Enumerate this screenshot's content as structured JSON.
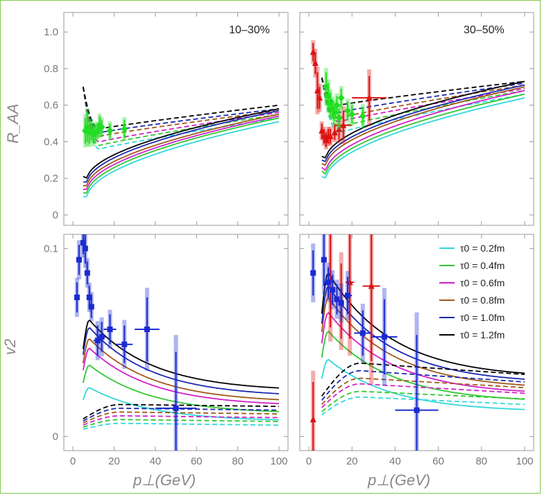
{
  "chart_data": {
    "type": "line",
    "xlabel": "p⊥(GeV)",
    "x_ticks": [
      "0",
      "20",
      "40",
      "60",
      "80",
      "100"
    ],
    "xlim": [
      0,
      100
    ],
    "top_ylabel": "R_AA",
    "top_ylim": [
      0,
      1.05
    ],
    "top_y_ticks": [
      "0",
      "0.2",
      "0.4",
      "0.6",
      "0.8",
      "1.0"
    ],
    "bottom_ylabel": "v2",
    "bottom_ylim": [
      -0.002,
      0.102
    ],
    "bottom_y_ticks": [
      "0",
      "0.1"
    ],
    "panel_labels": [
      "10–30%",
      "30–50%"
    ],
    "legend_position": "top-right of lower-right panel",
    "legend": [
      {
        "label": "τ0 = 0.2fm",
        "color": "#30d8d8"
      },
      {
        "label": "τ0 = 0.4fm",
        "color": "#30c830"
      },
      {
        "label": "τ0 = 0.6fm",
        "color": "#d020c8"
      },
      {
        "label": "τ0 = 0.8fm",
        "color": "#a0581a"
      },
      {
        "label": "τ0 = 1.0fm",
        "color": "#1a28b0"
      },
      {
        "label": "τ0 = 1.2fm",
        "color": "#000000"
      }
    ],
    "panels": [
      {
        "name": "RAA 10-30%",
        "solid_start_x": 5,
        "solid_min_x": 7,
        "solid_start": [
          0.1,
          0.12,
          0.14,
          0.16,
          0.18,
          0.21
        ],
        "solid_min": [
          0.1,
          0.12,
          0.14,
          0.16,
          0.18,
          0.2
        ],
        "solid_end": [
          0.51,
          0.53,
          0.54,
          0.55,
          0.57,
          0.58
        ],
        "dashed_start": [
          0.7,
          0.7,
          0.7,
          0.7,
          0.7,
          0.7
        ],
        "dashed_min": [
          0.36,
          0.38,
          0.4,
          0.43,
          0.45,
          0.47
        ],
        "dashed_end": [
          0.53,
          0.55,
          0.56,
          0.57,
          0.58,
          0.6
        ],
        "data": [
          {
            "color": "#22dd22",
            "marker": "diamond",
            "points": [
              [
                6,
                0.46
              ],
              [
                7,
                0.48
              ],
              [
                8,
                0.45
              ],
              [
                9,
                0.46
              ],
              [
                10,
                0.44
              ],
              [
                11,
                0.45
              ],
              [
                12,
                0.46
              ],
              [
                13,
                0.49
              ],
              [
                14,
                0.48
              ],
              [
                18,
                0.46
              ],
              [
                25,
                0.47
              ]
            ],
            "yerr": [
              0.07,
              0.08,
              0.06,
              0.05,
              0.05,
              0.04,
              0.04,
              0.05,
              0.04,
              0.04,
              0.05
            ],
            "xerr": [
              0,
              0,
              0,
              0,
              0,
              0,
              0,
              0,
              0,
              0,
              0
            ]
          }
        ]
      },
      {
        "name": "RAA 30-50%",
        "solid_start_x": 6,
        "solid_min_x": 8,
        "solid_start": [
          0.21,
          0.24,
          0.26,
          0.28,
          0.3,
          0.32
        ],
        "solid_min": [
          0.2,
          0.22,
          0.24,
          0.27,
          0.29,
          0.31
        ],
        "solid_end": [
          0.64,
          0.66,
          0.68,
          0.7,
          0.71,
          0.73
        ],
        "dashed_start": [
          0.75,
          0.75,
          0.75,
          0.75,
          0.75,
          0.75
        ],
        "dashed_min": [
          0.45,
          0.48,
          0.51,
          0.53,
          0.56,
          0.6
        ],
        "dashed_end": [
          0.66,
          0.68,
          0.69,
          0.71,
          0.72,
          0.73
        ],
        "data": [
          {
            "color": "#dd1111",
            "marker": "triangle",
            "points": [
              [
                2,
                0.89
              ],
              [
                3,
                0.83
              ],
              [
                4,
                0.68
              ],
              [
                5,
                0.64
              ],
              [
                6,
                0.46
              ],
              [
                7,
                0.43
              ],
              [
                8,
                0.41
              ],
              [
                9,
                0.43
              ],
              [
                10,
                0.43
              ],
              [
                12,
                0.45
              ],
              [
                14,
                0.47
              ],
              [
                16,
                0.49
              ],
              [
                28,
                0.64
              ]
            ],
            "yerr": [
              0.05,
              0.06,
              0.1,
              0.06,
              0.04,
              0.04,
              0.04,
              0.04,
              0.04,
              0.04,
              0.06,
              0.08,
              0.12
            ],
            "xerr": [
              0,
              0,
              0,
              0,
              0,
              0,
              0,
              0,
              0,
              0,
              0,
              4,
              8
            ]
          },
          {
            "color": "#22dd22",
            "marker": "diamond",
            "points": [
              [
                8,
                0.7
              ],
              [
                9,
                0.65
              ],
              [
                10,
                0.61
              ],
              [
                11,
                0.58
              ],
              [
                12,
                0.56
              ],
              [
                13,
                0.6
              ],
              [
                14,
                0.53
              ],
              [
                15,
                0.64
              ],
              [
                18,
                0.57
              ],
              [
                20,
                0.55
              ],
              [
                25,
                0.54
              ]
            ],
            "yerr": [
              0.08,
              0.07,
              0.06,
              0.05,
              0.05,
              0.05,
              0.05,
              0.05,
              0.05,
              0.05,
              0.05
            ],
            "xerr": [
              0,
              0,
              0,
              0,
              0,
              0,
              0,
              0,
              0,
              0,
              0
            ]
          }
        ]
      },
      {
        "name": "v2 10-30%",
        "solid_start_x": 5,
        "solid_peak_x": 8,
        "solid_peak": [
          0.026,
          0.038,
          0.047,
          0.052,
          0.058,
          0.062
        ],
        "solid_end": [
          0.008,
          0.012,
          0.016,
          0.018,
          0.021,
          0.024
        ],
        "dashed_peak": [
          0.007,
          0.009,
          0.011,
          0.013,
          0.015,
          0.017
        ],
        "dashed_end": [
          0.006,
          0.008,
          0.01,
          0.012,
          0.014,
          0.016
        ],
        "data": [
          {
            "color": "#1a2ad0",
            "marker": "square",
            "points": [
              [
                2,
                0.074
              ],
              [
                3,
                0.094
              ],
              [
                5,
                0.103
              ],
              [
                6,
                0.1
              ],
              [
                7,
                0.087
              ],
              [
                8,
                0.074
              ],
              [
                9,
                0.069
              ],
              [
                12,
                0.051
              ],
              [
                14,
                0.053
              ],
              [
                18,
                0.057
              ],
              [
                25,
                0.049
              ],
              [
                36,
                0.057
              ],
              [
                50,
                0.015
              ]
            ],
            "yerr": [
              0.008,
              0.008,
              0.006,
              0.008,
              0.006,
              0.006,
              0.006,
              0.008,
              0.008,
              0.008,
              0.01,
              0.017,
              0.03
            ],
            "xerr": [
              0,
              0,
              0,
              0,
              0,
              0,
              0,
              2,
              2,
              3,
              4,
              6,
              10
            ]
          }
        ]
      },
      {
        "name": "v2 30-50%",
        "solid_start_x": 6,
        "solid_peak_x": 9,
        "solid_peak": [
          0.041,
          0.056,
          0.066,
          0.074,
          0.08,
          0.087
        ],
        "solid_end": [
          0.013,
          0.018,
          0.022,
          0.025,
          0.028,
          0.031
        ],
        "dashed_peak": [
          0.021,
          0.024,
          0.028,
          0.031,
          0.035,
          0.039
        ],
        "dashed_end": [
          0.017,
          0.02,
          0.023,
          0.026,
          0.029,
          0.033
        ],
        "data": [
          {
            "color": "#dd1111",
            "marker": "triangle",
            "points": [
              [
                2,
                0.009
              ],
              [
                10,
                0.083
              ],
              [
                15,
                0.072
              ],
              [
                19,
                0.082
              ],
              [
                29,
                0.08
              ]
            ],
            "yerr": [
              0.02,
              0.025,
              0.02,
              0.03,
              0.04
            ],
            "xerr": [
              0,
              0,
              0,
              2,
              4
            ]
          },
          {
            "color": "#1a2ad0",
            "marker": "square",
            "points": [
              [
                2,
                0.087
              ],
              [
                7,
                0.094
              ],
              [
                9,
                0.082
              ],
              [
                11,
                0.078
              ],
              [
                13,
                0.073
              ],
              [
                15,
                0.071
              ],
              [
                18,
                0.075
              ],
              [
                25,
                0.055
              ],
              [
                35,
                0.053
              ],
              [
                50,
                0.014
              ]
            ],
            "yerr": [
              0.012,
              0.014,
              0.008,
              0.008,
              0.008,
              0.008,
              0.01,
              0.012,
              0.02,
              0.04
            ],
            "xerr": [
              0,
              0,
              1,
              1,
              1,
              1,
              2,
              4,
              6,
              10
            ]
          }
        ]
      }
    ]
  }
}
